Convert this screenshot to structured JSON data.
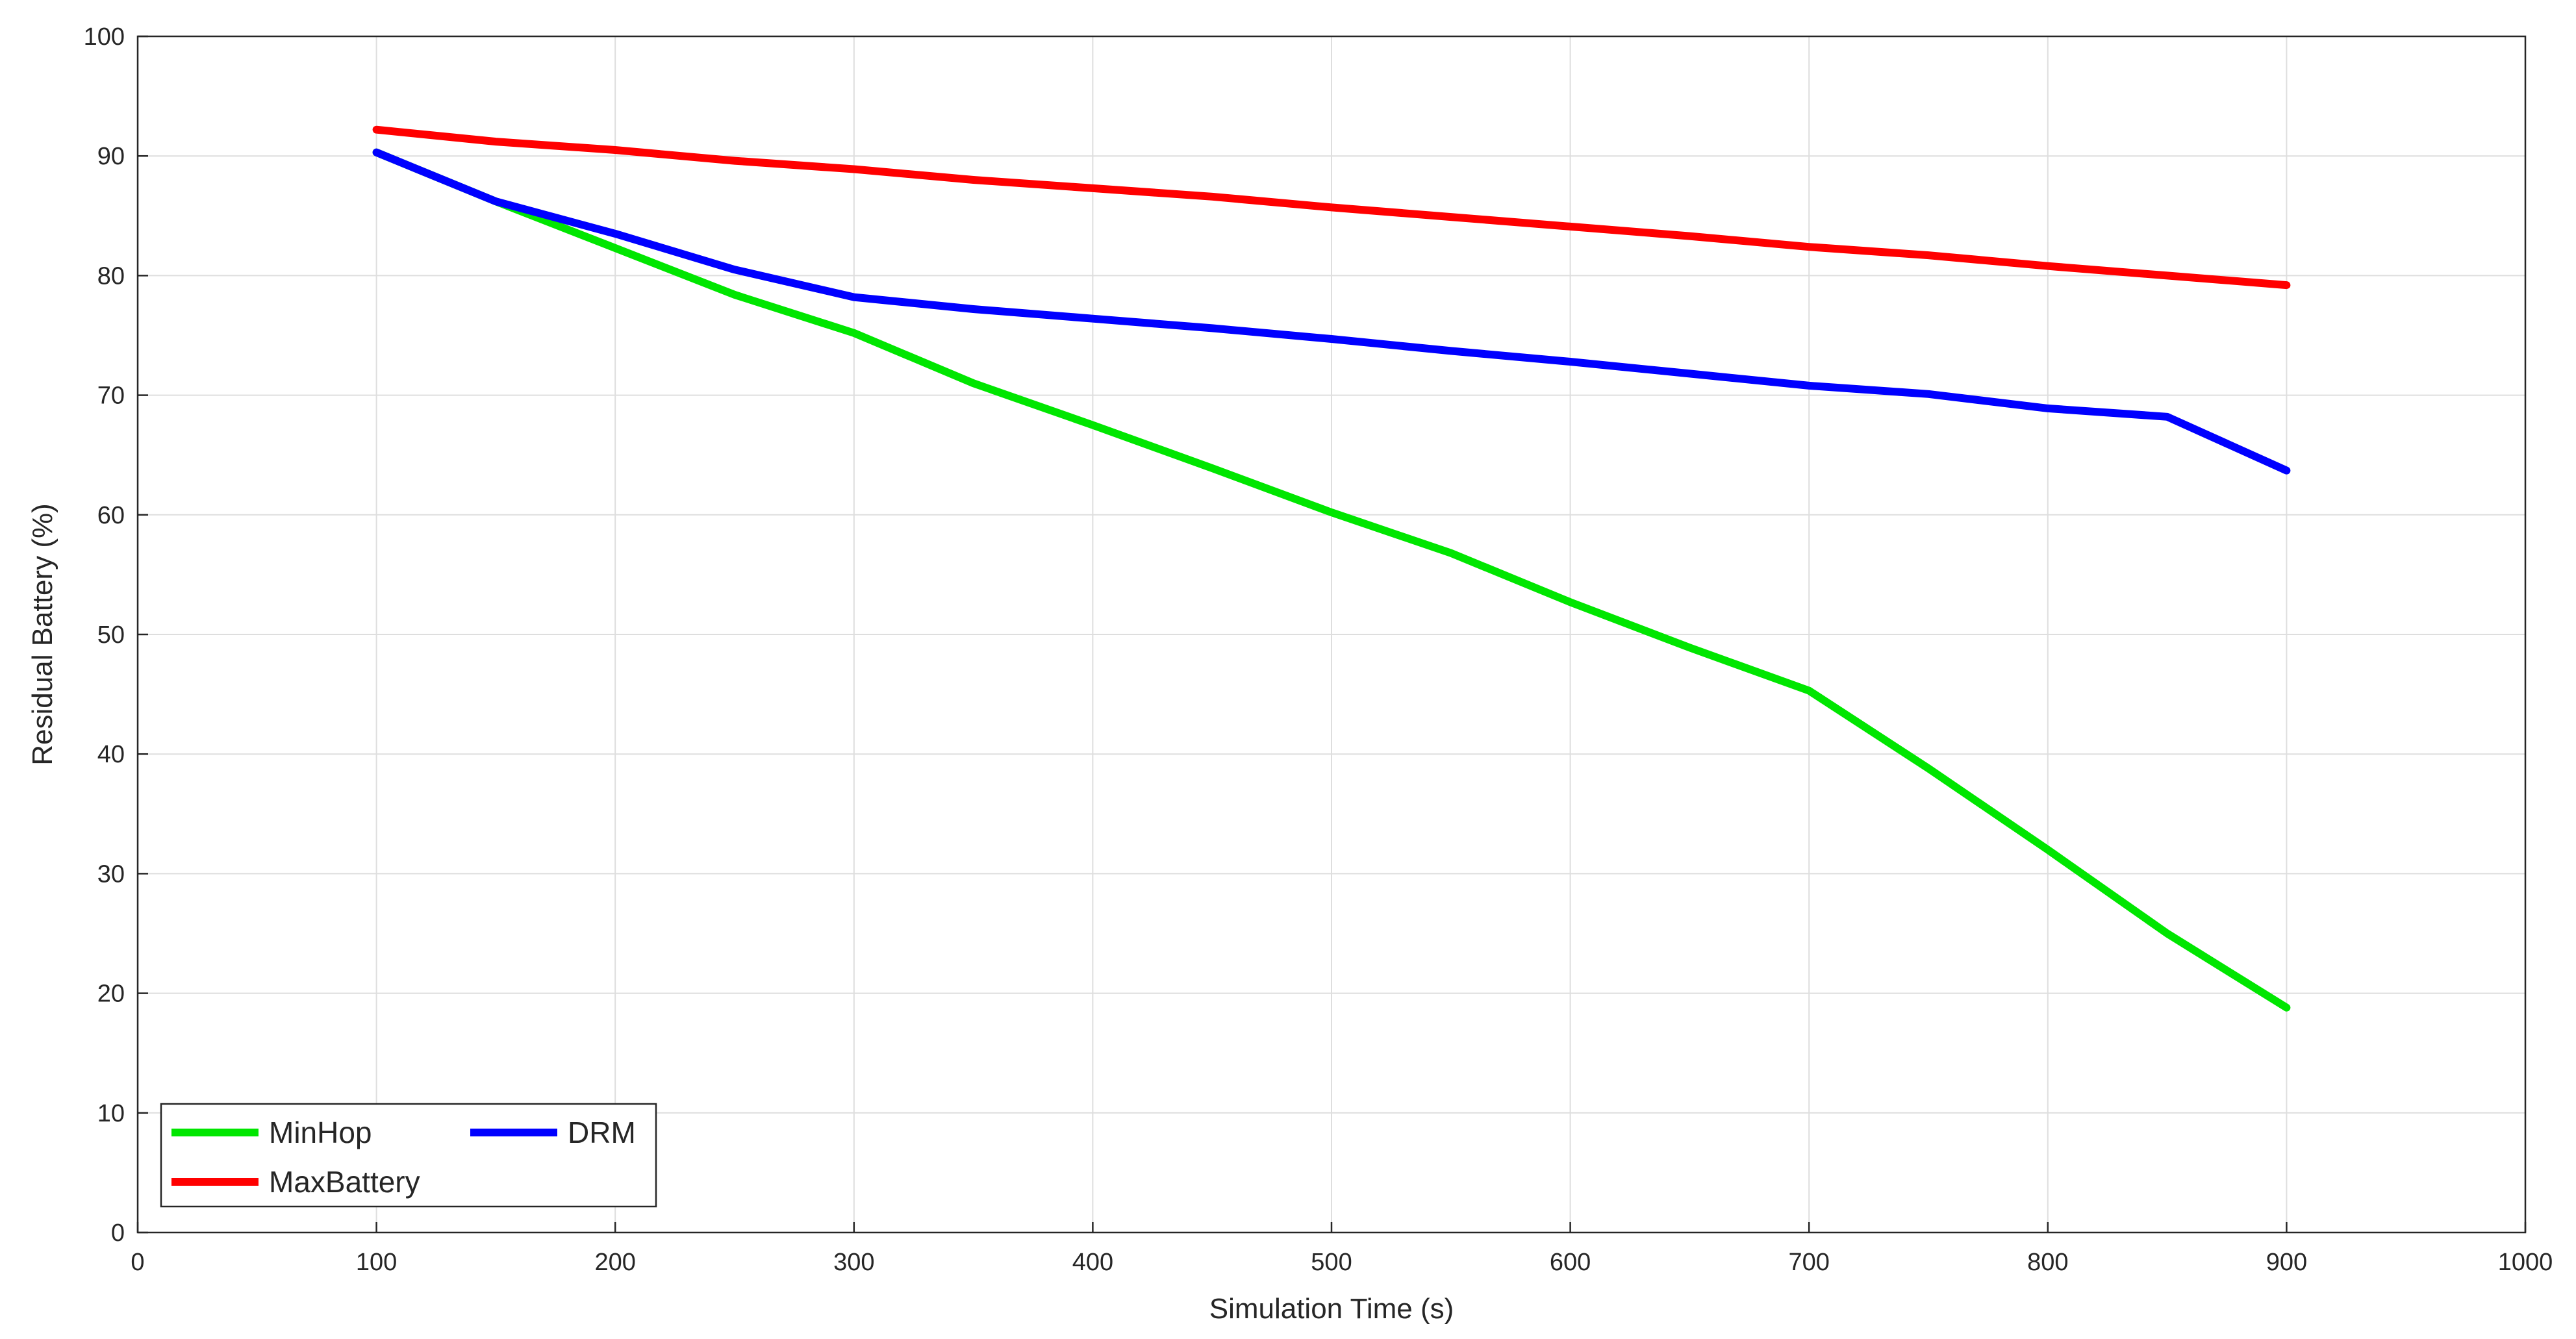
{
  "chart_data": {
    "type": "line",
    "xlabel": "Simulation Time (s)",
    "ylabel": "Residual Battery (%)",
    "xlim": [
      0,
      1000
    ],
    "ylim": [
      0,
      100
    ],
    "xticks": [
      0,
      100,
      200,
      300,
      400,
      500,
      600,
      700,
      800,
      900,
      1000
    ],
    "yticks": [
      0,
      10,
      20,
      30,
      40,
      50,
      60,
      70,
      80,
      90,
      100
    ],
    "grid": true,
    "legend_position": "bottom-left",
    "x": [
      100,
      150,
      200,
      250,
      300,
      350,
      400,
      450,
      500,
      550,
      600,
      650,
      700,
      750,
      800,
      850,
      900
    ],
    "series": [
      {
        "name": "MinHop",
        "color": "#00e600",
        "values": [
          90.3,
          86.2,
          82.3,
          78.4,
          75.2,
          71.0,
          67.5,
          63.9,
          60.2,
          56.8,
          52.7,
          48.9,
          45.3,
          38.8,
          32.0,
          25.0,
          18.8
        ]
      },
      {
        "name": "DRM",
        "color": "#0000ff",
        "values": [
          90.3,
          86.2,
          83.5,
          80.5,
          78.2,
          77.2,
          76.4,
          75.6,
          74.7,
          73.7,
          72.8,
          71.8,
          70.8,
          70.1,
          68.9,
          68.2,
          63.7
        ]
      },
      {
        "name": "MaxBattery",
        "color": "#ff0000",
        "values": [
          92.2,
          91.2,
          90.5,
          89.6,
          88.9,
          88.0,
          87.3,
          86.6,
          85.7,
          84.9,
          84.1,
          83.3,
          82.4,
          81.7,
          80.8,
          80.0,
          79.2
        ]
      }
    ]
  }
}
